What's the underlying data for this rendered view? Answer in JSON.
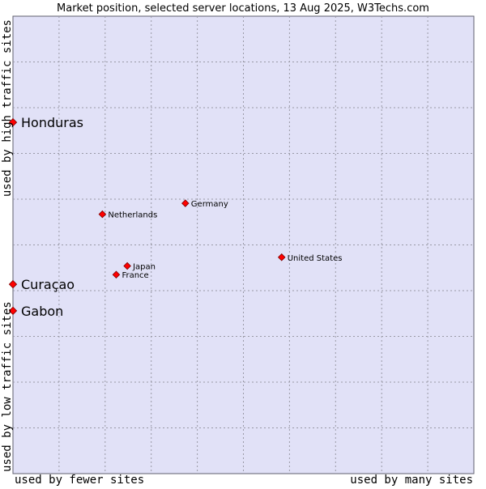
{
  "chart_data": {
    "type": "scatter",
    "title": "Market position, selected server locations, 13 Aug 2025, W3Techs.com",
    "axes": {
      "x_left_label": "used by fewer sites",
      "x_right_label": "used by many sites",
      "y_high_label": "used by high traffic sites",
      "y_low_label": "used by low traffic sites",
      "xlim": [
        0,
        100
      ],
      "ylim": [
        0,
        100
      ],
      "grid": true
    },
    "points": [
      {
        "label": "Honduras",
        "x": 0.0,
        "y": 76.8,
        "emphasized": true
      },
      {
        "label": "Germany",
        "x": 37.4,
        "y": 59.1,
        "emphasized": false
      },
      {
        "label": "Netherlands",
        "x": 19.4,
        "y": 56.7,
        "emphasized": false
      },
      {
        "label": "United States",
        "x": 58.3,
        "y": 47.3,
        "emphasized": false
      },
      {
        "label": "Japan",
        "x": 24.8,
        "y": 45.4,
        "emphasized": false
      },
      {
        "label": "France",
        "x": 22.4,
        "y": 43.5,
        "emphasized": false
      },
      {
        "label": "Curaçao",
        "x": 0.0,
        "y": 41.4,
        "emphasized": true
      },
      {
        "label": "Gabon",
        "x": 0.0,
        "y": 35.6,
        "emphasized": true
      }
    ]
  },
  "colors": {
    "plot_background": "#e1e1f7",
    "plot_border": "#5e5e6d",
    "gridline": "#9999a6",
    "point_fill": "#ff0000",
    "point_stroke": "#7a0000",
    "text": "#000000"
  }
}
